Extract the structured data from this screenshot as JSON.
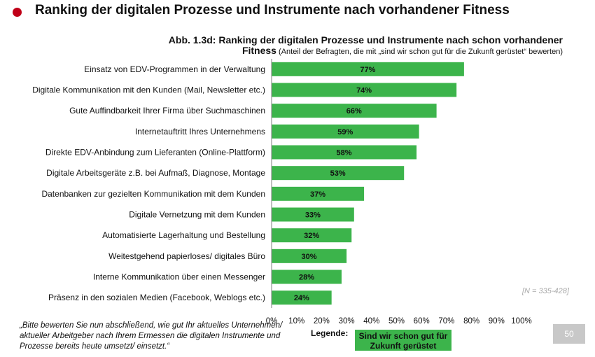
{
  "header": {
    "title": "Ranking der digitalen Prozesse und Instrumente nach vorhandener Fitness",
    "color": "#c00018"
  },
  "figure": {
    "title": "Abb. 1.3d: Ranking der digitalen Prozesse und Instrumente nach schon vorhandener",
    "subtitle_strong": "Fitness",
    "subtitle_note": " (Anteil der Befragten, die mit „sind wir schon gut für die Zukunft gerüstet“ bewerten)",
    "n_note": "[N = 335-428]"
  },
  "question": "„Bitte bewerten Sie nun abschließend, wie gut Ihr aktuelles Unternehmen/ aktueller Arbeitgeber nach Ihrem Ermessen die digitalen Instrumente und Prozesse bereits heute umsetzt/ einsetzt.“",
  "legend": {
    "label": "Legende:",
    "item": "Sind wir schon gut für Zukunft gerüstet"
  },
  "page_number": "50",
  "chart_data": {
    "type": "bar",
    "orientation": "horizontal",
    "bar_color": "#3cb44b",
    "categories": [
      "Einsatz von EDV-Programmen in der Verwaltung",
      "Digitale Kommunikation mit den Kunden (Mail, Newsletter etc.)",
      "Gute Auffindbarkeit Ihrer Firma über Suchmaschinen",
      "Internetauftritt Ihres Unternehmens",
      "Direkte EDV-Anbindung zum Lieferanten (Online-Plattform)",
      "Digitale Arbeitsgeräte z.B. bei Aufmaß, Diagnose, Montage",
      "Datenbanken zur gezielten Kommunikation mit dem Kunden",
      "Digitale Vernetzung mit dem Kunden",
      "Automatisierte Lagerhaltung und Bestellung",
      "Weitestgehend papierloses/ digitales Büro",
      "Interne Kommunikation über einen Messenger",
      "Präsenz in den sozialen Medien (Facebook, Weblogs etc.)"
    ],
    "values": [
      77,
      74,
      66,
      59,
      58,
      53,
      37,
      33,
      32,
      30,
      28,
      24
    ],
    "value_labels": [
      "77%",
      "74%",
      "66%",
      "59%",
      "58%",
      "53%",
      "37%",
      "33%",
      "32%",
      "30%",
      "28%",
      "24%"
    ],
    "xlim": [
      0,
      100
    ],
    "xticks": [
      "0%",
      "10%",
      "20%",
      "30%",
      "40%",
      "50%",
      "60%",
      "70%",
      "80%",
      "90%",
      "100%"
    ],
    "grid": false
  }
}
